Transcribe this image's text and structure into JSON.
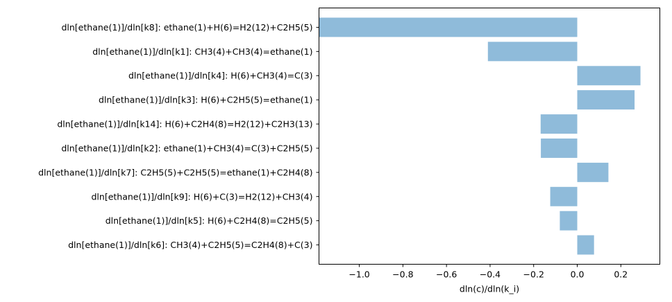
{
  "chart_data": {
    "type": "bar",
    "orientation": "horizontal",
    "categories": [
      "dln[ethane(1)]/dln[k8]: ethane(1)+H(6)=H2(12)+C2H5(5)",
      "dln[ethane(1)]/dln[k1]: CH3(4)+CH3(4)=ethane(1)",
      "dln[ethane(1)]/dln[k4]: H(6)+CH3(4)=C(3)",
      "dln[ethane(1)]/dln[k3]: H(6)+C2H5(5)=ethane(1)",
      "dln[ethane(1)]/dln[k14]: H(6)+C2H4(8)=H2(12)+C2H3(13)",
      "dln[ethane(1)]/dln[k2]: ethane(1)+CH3(4)=C(3)+C2H5(5)",
      "dln[ethane(1)]/dln[k7]: C2H5(5)+C2H5(5)=ethane(1)+C2H4(8)",
      "dln[ethane(1)]/dln[k9]: H(6)+C(3)=H2(12)+CH3(4)",
      "dln[ethane(1)]/dln[k5]: H(6)+C2H4(8)=C2H5(5)",
      "dln[ethane(1)]/dln[k6]: CH3(4)+C2H5(5)=C2H4(8)+C(3)"
    ],
    "values": [
      -1.185,
      -0.41,
      0.29,
      0.263,
      -0.168,
      -0.167,
      0.143,
      -0.124,
      -0.08,
      0.077
    ],
    "xlabel": "dln(c)/dln(k_i)",
    "ylabel": "",
    "title": "",
    "xlim": [
      -1.185,
      0.379
    ],
    "xticks": [
      -1.0,
      -0.8,
      -0.6,
      -0.4,
      -0.2,
      0.0,
      0.2
    ],
    "xtick_labels": [
      "−1.0",
      "−0.8",
      "−0.6",
      "−0.4",
      "−0.2",
      "0.0",
      "0.2"
    ],
    "bar_color": "#8fbbda",
    "grid": false,
    "legend": "none"
  }
}
